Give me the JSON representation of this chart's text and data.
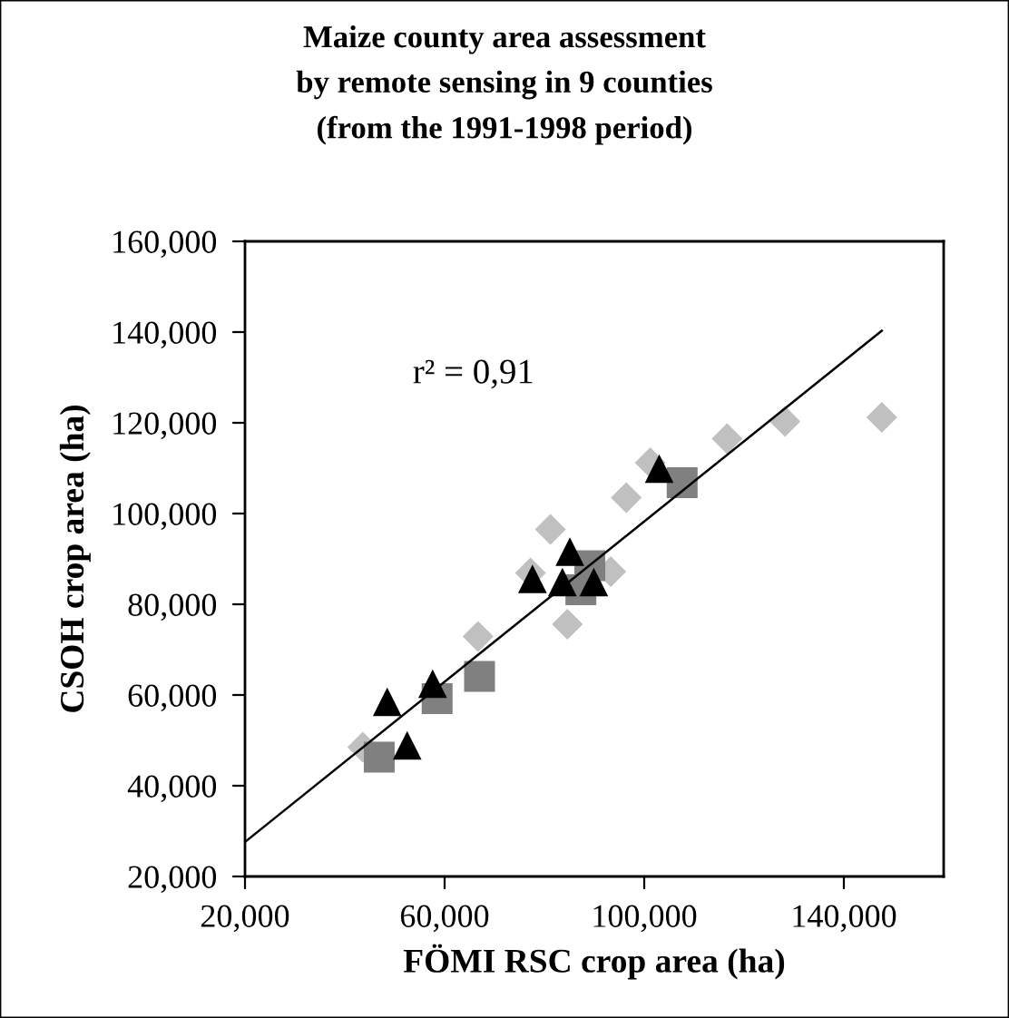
{
  "chart_data": {
    "type": "scatter",
    "title": "Maize county area assessment\nby remote sensing in 9 counties\n(from the 1991-1998 period)",
    "xlabel": "FÖMI RSC crop area (ha)",
    "ylabel": "CSOH crop area (ha)",
    "annotations": [
      "r² = 0,91"
    ],
    "xlim": [
      20000,
      160000
    ],
    "ylim": [
      20000,
      160000
    ],
    "xticks": [
      {
        "value": 20000,
        "label": "20,000"
      },
      {
        "value": 60000,
        "label": "60,000"
      },
      {
        "value": 100000,
        "label": "100,000"
      },
      {
        "value": 140000,
        "label": "140,000"
      }
    ],
    "yticks": [
      {
        "value": 20000,
        "label": "20,000"
      },
      {
        "value": 40000,
        "label": "40,000"
      },
      {
        "value": 60000,
        "label": "60,000"
      },
      {
        "value": 80000,
        "label": "80,000"
      },
      {
        "value": 100000,
        "label": "100,000"
      },
      {
        "value": 120000,
        "label": "120,000"
      },
      {
        "value": 140000,
        "label": "140,000"
      },
      {
        "value": 160000,
        "label": "160,000"
      }
    ],
    "grid": false,
    "series": [
      {
        "marker": "diamond",
        "color": "#c0c0c0",
        "x": [
          147600,
          128200,
          116600,
          101200,
          96400,
          81200,
          93300,
          77200,
          84600,
          66700,
          43600
        ],
        "values": [
          121200,
          120300,
          116500,
          111200,
          103500,
          96500,
          87200,
          86900,
          75600,
          72900,
          48500
        ]
      },
      {
        "marker": "square",
        "color": "#808080",
        "x": [
          107600,
          87300,
          89100,
          67000,
          58500,
          46900
        ],
        "values": [
          106800,
          83200,
          88500,
          64100,
          59200,
          46300
        ]
      },
      {
        "marker": "triangle",
        "color": "#000000",
        "x": [
          103000,
          85100,
          77600,
          83600,
          89900,
          48500,
          57600,
          52500
        ],
        "values": [
          109900,
          91600,
          85600,
          84900,
          84900,
          58500,
          62500,
          48900
        ]
      },
      {
        "type": "line",
        "marker": "none",
        "line_style": "solid",
        "color": "#000000",
        "x": [
          20000,
          147600
        ],
        "values": [
          27600,
          140300
        ]
      }
    ]
  }
}
